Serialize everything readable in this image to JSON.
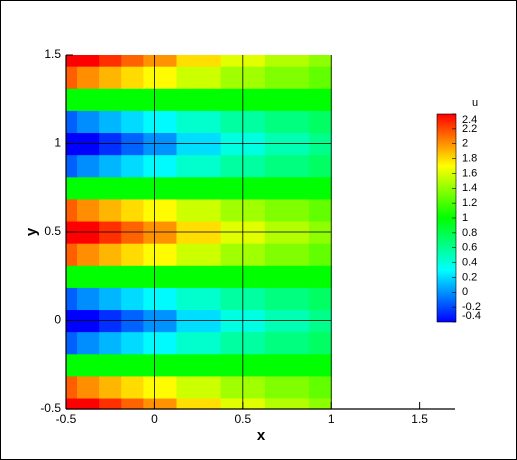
{
  "chart_data": {
    "type": "contour",
    "xlabel": "x",
    "ylabel": "y",
    "xlim": [
      -0.5,
      1.7
    ],
    "ylim": [
      -0.5,
      1.5
    ],
    "xticks": [
      -0.5,
      0,
      0.5,
      1,
      1.5
    ],
    "yticks": [
      -0.5,
      0,
      0.5,
      1,
      1.5
    ],
    "grid_x": [
      0,
      0.5,
      1
    ],
    "grid_y": [
      0,
      0.5,
      1
    ],
    "x": [
      -0.5,
      -0.375,
      -0.25,
      -0.125,
      0,
      0.25,
      0.5,
      0.75,
      1
    ],
    "y": [
      -0.5,
      -0.375,
      -0.25,
      -0.125,
      0,
      0.125,
      0.25,
      0.375,
      0.5,
      0.625,
      0.75,
      0.875,
      1,
      1.125,
      1.25,
      1.375,
      1.5
    ],
    "z": [
      [
        2.61,
        2.43,
        2.27,
        2.13,
        2,
        1.79,
        1.62,
        1.49,
        1.39
      ],
      [
        2.14,
        2.01,
        1.9,
        1.8,
        1.71,
        1.56,
        1.44,
        1.35,
        1.27
      ],
      [
        1,
        1,
        1,
        1,
        1,
        1,
        1,
        1,
        1
      ],
      [
        -0.14,
        -0.01,
        0.1,
        0.2,
        0.29,
        0.44,
        0.56,
        0.65,
        0.73
      ],
      [
        -0.61,
        -0.43,
        -0.27,
        -0.13,
        0,
        0.21,
        0.38,
        0.51,
        0.62
      ],
      [
        -0.14,
        -0.01,
        0.1,
        0.2,
        0.29,
        0.44,
        0.56,
        0.65,
        0.73
      ],
      [
        1,
        1,
        1,
        1,
        1,
        1,
        1,
        1,
        1
      ],
      [
        2.14,
        2.01,
        1.9,
        1.8,
        1.71,
        1.56,
        1.44,
        1.35,
        1.27
      ],
      [
        2.61,
        2.43,
        2.27,
        2.13,
        2,
        1.79,
        1.62,
        1.49,
        1.39
      ],
      [
        2.14,
        2.01,
        1.9,
        1.8,
        1.71,
        1.56,
        1.44,
        1.35,
        1.27
      ],
      [
        1,
        1,
        1,
        1,
        1,
        1,
        1,
        1,
        1
      ],
      [
        -0.14,
        -0.01,
        0.1,
        0.2,
        0.29,
        0.44,
        0.56,
        0.65,
        0.73
      ],
      [
        -0.61,
        -0.43,
        -0.27,
        -0.13,
        0,
        0.21,
        0.38,
        0.51,
        0.62
      ],
      [
        -0.14,
        -0.01,
        0.1,
        0.2,
        0.29,
        0.44,
        0.56,
        0.65,
        0.73
      ],
      [
        1,
        1,
        1,
        1,
        1,
        1,
        1,
        1,
        1
      ],
      [
        2.14,
        2.01,
        1.9,
        1.8,
        1.71,
        1.56,
        1.44,
        1.35,
        1.27
      ],
      [
        2.61,
        2.43,
        2.27,
        2.13,
        2,
        1.79,
        1.62,
        1.49,
        1.39
      ]
    ],
    "colorbar_title": "u",
    "colorbar_ticks": [
      -0.4,
      -0.2,
      0,
      0.2,
      0.4,
      0.6,
      0.8,
      1,
      1.2,
      1.4,
      1.6,
      1.8,
      2,
      2.2,
      2.4
    ],
    "colors": [
      "#0000ff",
      "#00ffff",
      "#00ff00",
      "#ffff00",
      "#ff0000"
    ]
  }
}
